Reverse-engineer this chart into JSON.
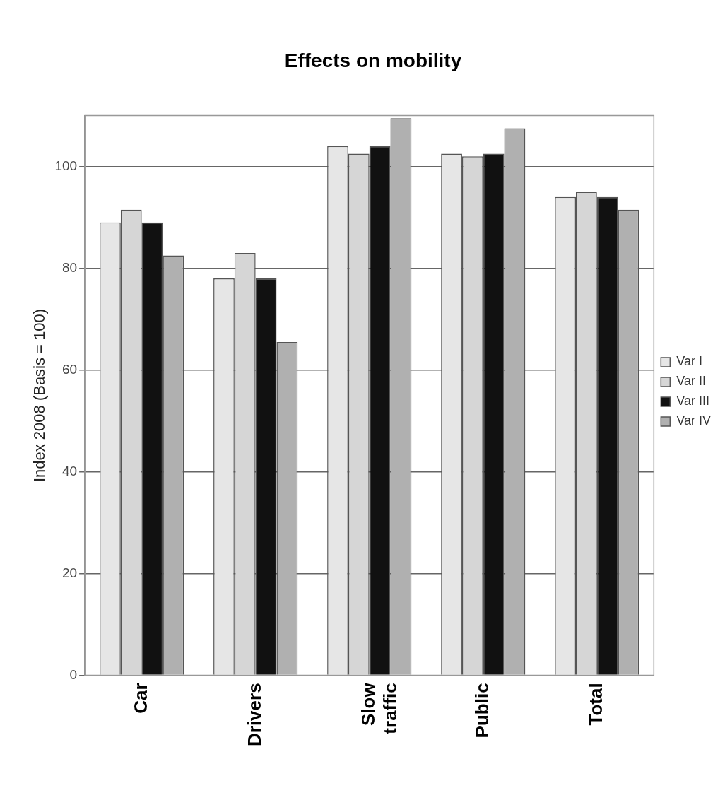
{
  "chart_data": {
    "type": "bar",
    "title": "Effects on mobility",
    "ylabel": "Index 2008 (Basis = 100)",
    "categories": [
      "Car",
      "Drivers",
      "Slow traffic",
      "Public",
      "Total"
    ],
    "series": [
      {
        "name": "Var I",
        "color": "#e6e6e6",
        "values": [
          89,
          78,
          104,
          102.5,
          94
        ]
      },
      {
        "name": "Var II",
        "color": "#d6d6d6",
        "values": [
          91.5,
          83,
          102.5,
          102,
          95
        ]
      },
      {
        "name": "Var III",
        "color": "#111111",
        "values": [
          89,
          78,
          104,
          102.5,
          94
        ]
      },
      {
        "name": "Var IV",
        "color": "#b0b0b0",
        "values": [
          82.5,
          65.5,
          109.5,
          107.5,
          91.5
        ]
      }
    ],
    "ylim": [
      0,
      110
    ],
    "yticks": [
      0,
      20,
      40,
      60,
      80,
      100
    ],
    "grid": "y",
    "legend": "right"
  }
}
